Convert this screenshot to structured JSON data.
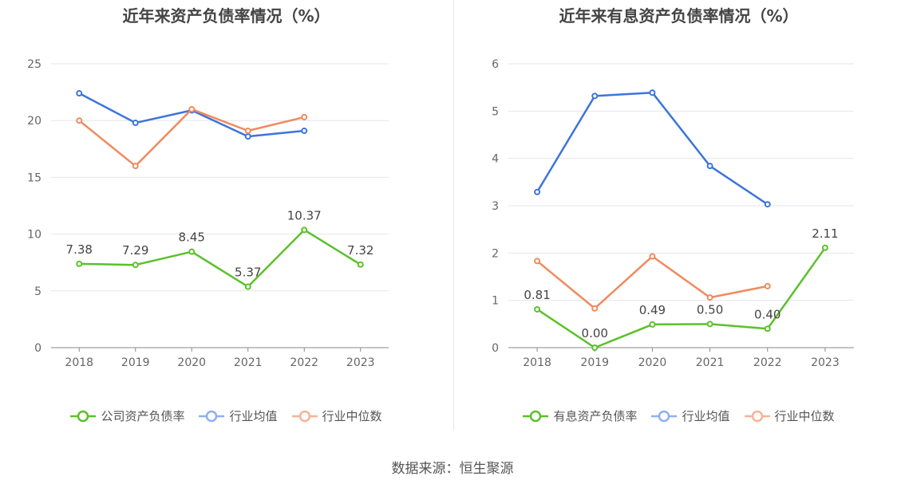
{
  "chart_data": [
    {
      "type": "line",
      "title": "近年来资产负债率情况（%）",
      "categories": [
        "2018",
        "2019",
        "2020",
        "2021",
        "2022",
        "2023"
      ],
      "ylim": [
        0,
        25
      ],
      "yticks": [
        0,
        5,
        10,
        15,
        20,
        25
      ],
      "grid": true,
      "legend_position": "bottom",
      "series": [
        {
          "name": "公司资产负债率",
          "color": "#5bc12a",
          "values": [
            7.38,
            7.29,
            8.45,
            5.37,
            10.37,
            7.32
          ],
          "labels": [
            "7.38",
            "7.29",
            "8.45",
            "5.37",
            "10.37",
            "7.32"
          ]
        },
        {
          "name": "行业均值",
          "color": "#3c74db",
          "legend_color": "#8fb0ee",
          "values": [
            22.4,
            19.8,
            20.9,
            18.6,
            19.1,
            null
          ]
        },
        {
          "name": "行业中位数",
          "color": "#f08a5d",
          "legend_color": "#f5b497",
          "values": [
            20.0,
            16.0,
            21.0,
            19.1,
            20.3,
            null
          ]
        }
      ]
    },
    {
      "type": "line",
      "title": "近年来有息资产负债率情况（%）",
      "categories": [
        "2018",
        "2019",
        "2020",
        "2021",
        "2022",
        "2023"
      ],
      "ylim": [
        0,
        6
      ],
      "yticks": [
        0,
        1,
        2,
        3,
        4,
        5,
        6
      ],
      "grid": true,
      "legend_position": "bottom",
      "series": [
        {
          "name": "有息资产负债率",
          "color": "#5bc12a",
          "values": [
            0.81,
            0.0,
            0.49,
            0.5,
            0.4,
            2.11
          ],
          "labels": [
            "0.81",
            "0.00",
            "0.49",
            "0.50",
            "0.40",
            "2.11"
          ]
        },
        {
          "name": "行业均值",
          "color": "#3c74db",
          "legend_color": "#8fb0ee",
          "values": [
            3.29,
            5.32,
            5.39,
            3.84,
            3.03,
            null
          ]
        },
        {
          "name": "行业中位数",
          "color": "#f08a5d",
          "legend_color": "#f5b497",
          "values": [
            1.83,
            0.83,
            1.93,
            1.06,
            1.3,
            null
          ]
        }
      ]
    }
  ],
  "source": "数据来源：恒生聚源"
}
